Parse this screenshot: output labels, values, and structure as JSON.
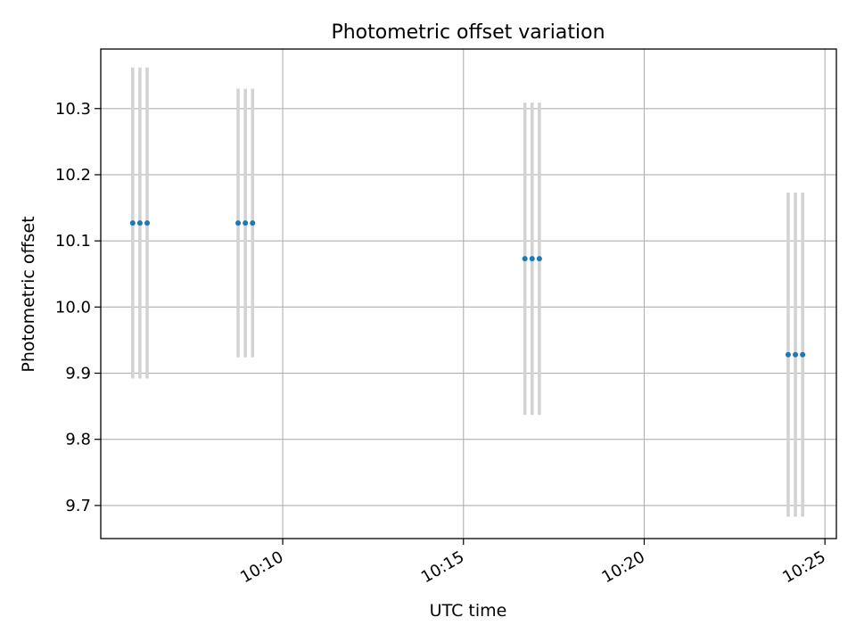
{
  "chart_data": {
    "type": "scatter",
    "title": "Photometric offset variation",
    "xlabel": "UTC time",
    "ylabel": "Photometric offset",
    "x_tick_labels": [
      "10:10",
      "10:15",
      "10:20",
      "10:25"
    ],
    "x_ticks": [
      "10:10",
      "10:15",
      "10:20",
      "10:25"
    ],
    "y_tick_labels": [
      "9.7",
      "9.8",
      "9.9",
      "10.0",
      "10.1",
      "10.2",
      "10.3"
    ],
    "y_ticks": [
      9.7,
      9.8,
      9.9,
      10.0,
      10.1,
      10.2,
      10.3
    ],
    "xlim": [
      "10:04:58",
      "10:25:19"
    ],
    "ylim": [
      9.65,
      10.39
    ],
    "grid": true,
    "legend": "none",
    "marker_color": "#1f77b4",
    "errorbar_color": "#d3d3d3",
    "points": [
      {
        "x": "10:05:51",
        "y": 10.127,
        "yerr": 0.235
      },
      {
        "x": "10:06:03",
        "y": 10.127,
        "yerr": 0.235
      },
      {
        "x": "10:06:15",
        "y": 10.127,
        "yerr": 0.235
      },
      {
        "x": "10:08:46",
        "y": 10.127,
        "yerr": 0.203
      },
      {
        "x": "10:08:58",
        "y": 10.127,
        "yerr": 0.203
      },
      {
        "x": "10:09:10",
        "y": 10.127,
        "yerr": 0.203
      },
      {
        "x": "10:16:42",
        "y": 10.073,
        "yerr": 0.236
      },
      {
        "x": "10:16:54",
        "y": 10.073,
        "yerr": 0.236
      },
      {
        "x": "10:17:06",
        "y": 10.073,
        "yerr": 0.236
      },
      {
        "x": "10:23:59",
        "y": 9.928,
        "yerr": 0.245
      },
      {
        "x": "10:24:11",
        "y": 9.928,
        "yerr": 0.245
      },
      {
        "x": "10:24:23",
        "y": 9.928,
        "yerr": 0.245
      }
    ]
  }
}
